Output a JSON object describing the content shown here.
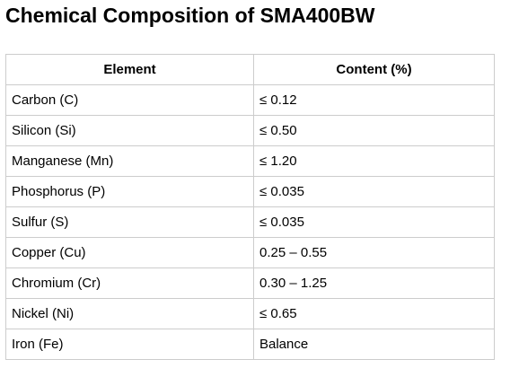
{
  "title": "Chemical Composition of SMA400BW",
  "table": {
    "headers": [
      "Element",
      "Content (%)"
    ],
    "rows": [
      [
        "Carbon (C)",
        "≤ 0.12"
      ],
      [
        "Silicon (Si)",
        "≤ 0.50"
      ],
      [
        "Manganese (Mn)",
        "≤ 1.20"
      ],
      [
        "Phosphorus (P)",
        "≤ 0.035"
      ],
      [
        "Sulfur (S)",
        "≤ 0.035"
      ],
      [
        "Copper (Cu)",
        "0.25 – 0.55"
      ],
      [
        "Chromium (Cr)",
        "0.30 – 1.25"
      ],
      [
        "Nickel (Ni)",
        "≤ 0.65"
      ],
      [
        "Iron (Fe)",
        "Balance"
      ]
    ]
  }
}
